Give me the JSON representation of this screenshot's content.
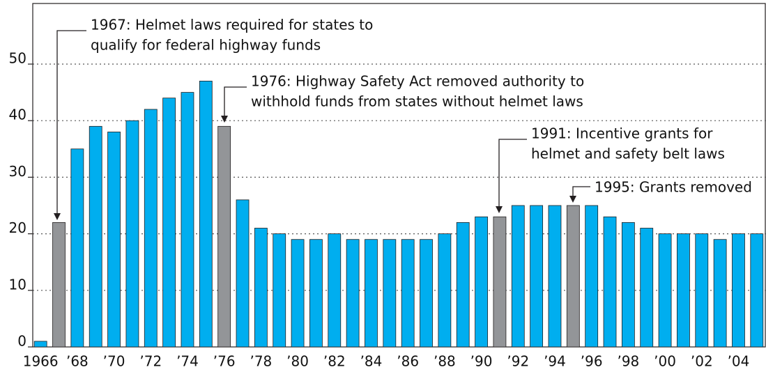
{
  "chart_data": {
    "type": "bar",
    "categories": [
      "1966",
      null,
      "’68",
      null,
      "’70",
      null,
      "’72",
      null,
      "’74",
      null,
      "’76",
      null,
      "’78",
      null,
      "’80",
      null,
      "’82",
      null,
      "’84",
      null,
      "’86",
      null,
      "’88",
      null,
      "’90",
      null,
      "’92",
      null,
      "’94",
      null,
      "’96",
      null,
      "’98",
      null,
      "’00",
      null,
      "’02",
      null,
      "’04",
      null
    ],
    "values": [
      1,
      22,
      35,
      39,
      38,
      40,
      42,
      44,
      45,
      47,
      39,
      26,
      21,
      20,
      19,
      19,
      20,
      19,
      19,
      19,
      19,
      19,
      20,
      22,
      23,
      23,
      25,
      25,
      25,
      25,
      25,
      23,
      22,
      21,
      20,
      20,
      20,
      19,
      20,
      20
    ],
    "colors": [
      "#00aeef",
      "#939598",
      "#00aeef",
      "#00aeef",
      "#00aeef",
      "#00aeef",
      "#00aeef",
      "#00aeef",
      "#00aeef",
      "#00aeef",
      "#939598",
      "#00aeef",
      "#00aeef",
      "#00aeef",
      "#00aeef",
      "#00aeef",
      "#00aeef",
      "#00aeef",
      "#00aeef",
      "#00aeef",
      "#00aeef",
      "#00aeef",
      "#00aeef",
      "#00aeef",
      "#00aeef",
      "#939598",
      "#00aeef",
      "#00aeef",
      "#00aeef",
      "#939598",
      "#00aeef",
      "#00aeef",
      "#00aeef",
      "#00aeef",
      "#00aeef",
      "#00aeef",
      "#00aeef",
      "#00aeef",
      "#00aeef",
      "#00aeef"
    ],
    "ylim": [
      0,
      60
    ],
    "yticks": [
      0,
      10,
      20,
      30,
      40,
      50
    ],
    "grid": true,
    "annotations": [
      {
        "lines": [
          "1967: Helmet laws required for states to",
          "qualify for federal highway funds"
        ]
      },
      {
        "lines": [
          "1976: Highway Safety Act removed authority to",
          "withhold funds from states without helmet laws"
        ]
      },
      {
        "lines": [
          "1991: Incentive grants for",
          "helmet and safety belt laws"
        ]
      },
      {
        "lines": [
          "1995: Grants removed"
        ]
      }
    ]
  }
}
